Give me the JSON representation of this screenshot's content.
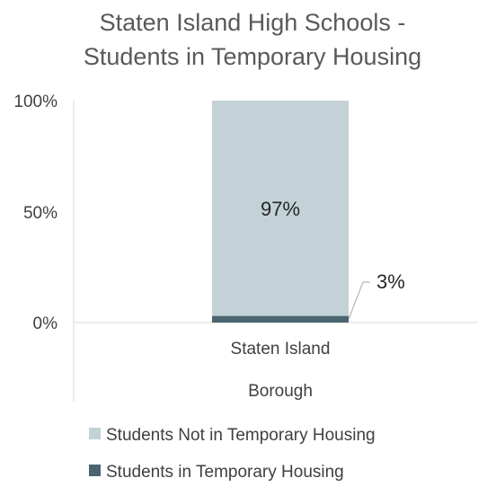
{
  "chart_data": {
    "type": "bar",
    "stacked": true,
    "title": "Staten Island High Schools - Students in Temporary Housing",
    "title_lines": [
      "Staten Island High Schools -",
      "Students in Temporary Housing"
    ],
    "categories": [
      "Staten Island Borough"
    ],
    "category_label_lines": [
      "Staten Island",
      "Borough"
    ],
    "series": [
      {
        "name": "Students in Temporary Housing",
        "values": [
          3
        ],
        "label": "3%",
        "color": "#4a6470"
      },
      {
        "name": "Students Not in Temporary Housing",
        "values": [
          97
        ],
        "label": "97%",
        "color": "#c2d2d7"
      }
    ],
    "yticks": [
      "0%",
      "50%",
      "100%"
    ],
    "ylim": [
      0,
      100
    ],
    "legend_position": "bottom",
    "grid": false,
    "xlabel": "",
    "ylabel": ""
  }
}
